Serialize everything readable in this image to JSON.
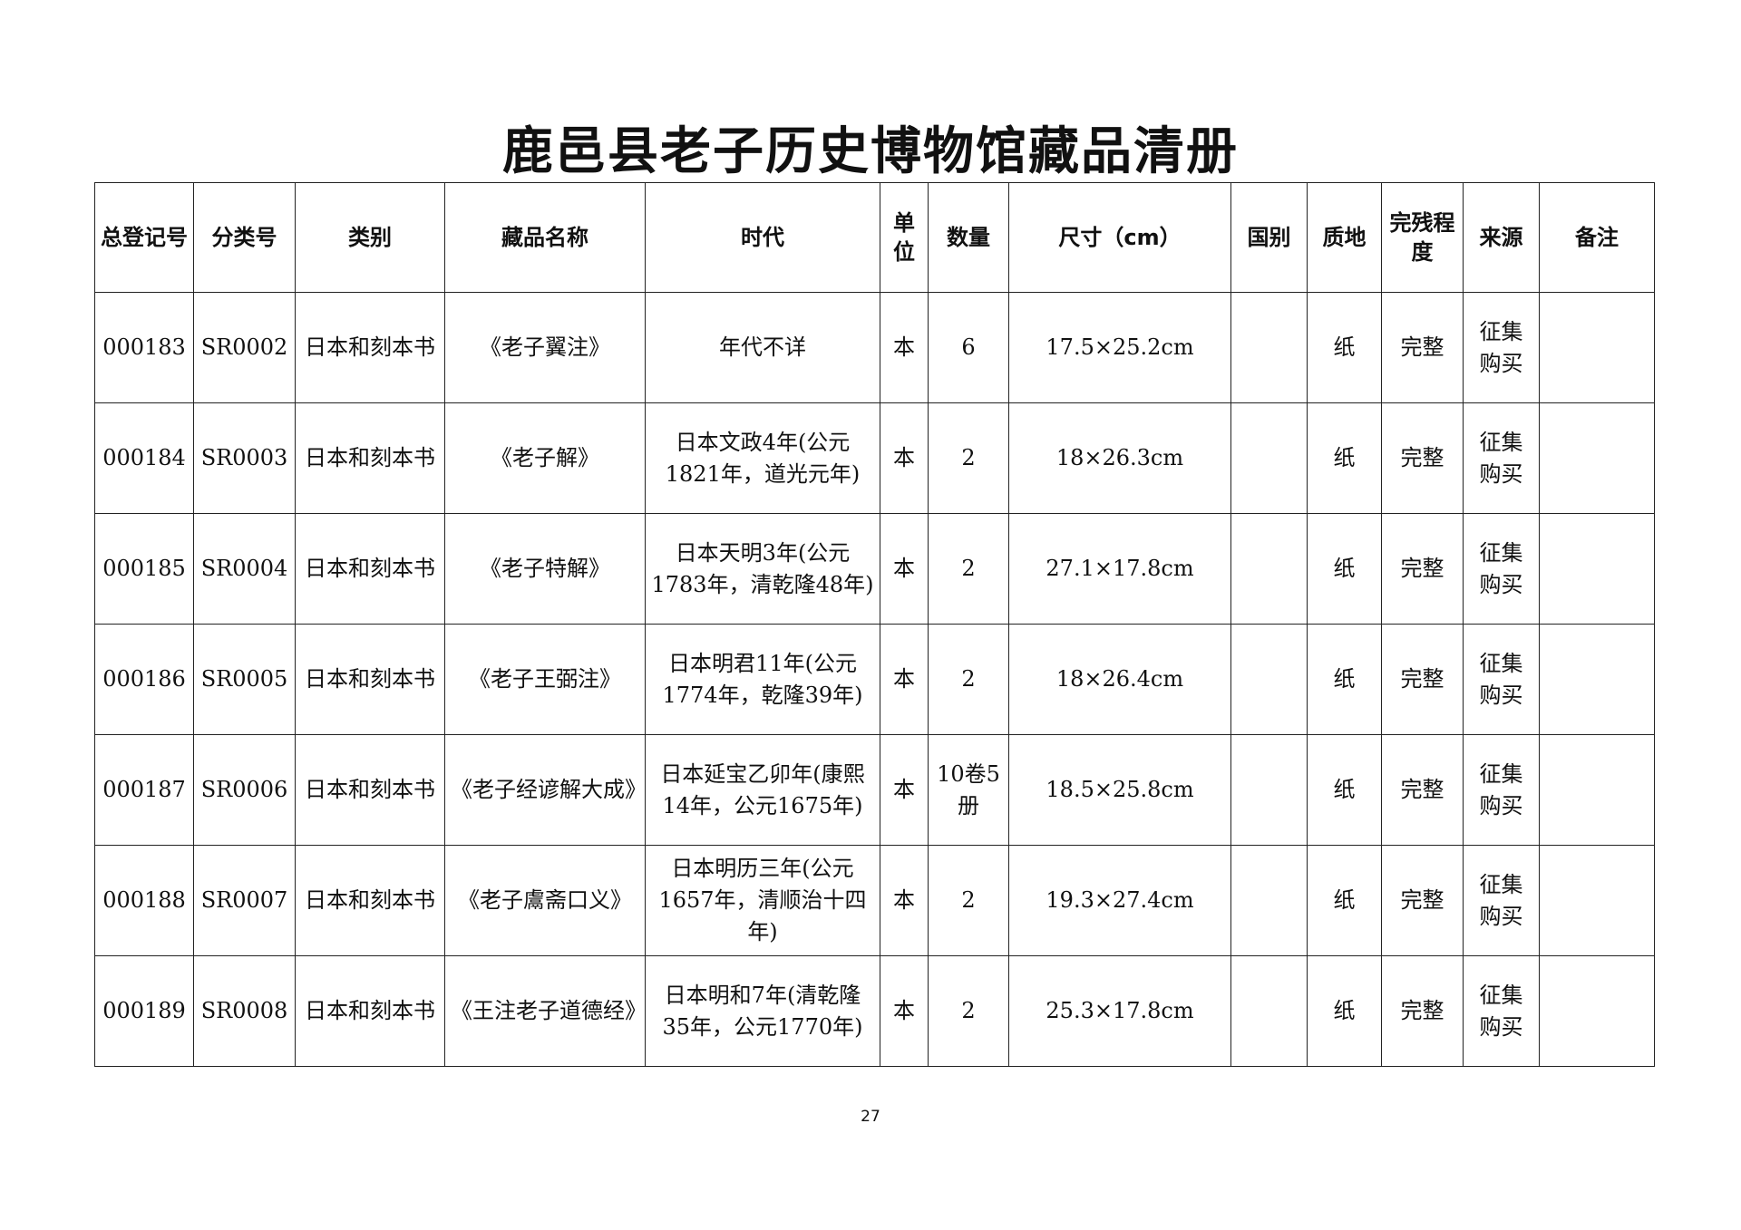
{
  "title": "鹿邑县老子历史博物馆藏品清册",
  "columns": [
    "总登记号",
    "分类号",
    "类别",
    "藏品名称",
    "时代",
    "单位",
    "数量",
    "尺寸（cm）",
    "国别",
    "质地",
    "完残程度",
    "来源",
    "备注"
  ],
  "rows": [
    [
      "000183",
      "SR0002",
      "日本和刻本书",
      "《老子翼注》",
      "年代不详",
      "本",
      "6",
      "17.5×25.2cm",
      "",
      "纸",
      "完整",
      "征集购买",
      ""
    ],
    [
      "000184",
      "SR0003",
      "日本和刻本书",
      "《老子解》",
      "日本文政4年(公元1821年，道光元年)",
      "本",
      "2",
      "18×26.3cm",
      "",
      "纸",
      "完整",
      "征集购买",
      ""
    ],
    [
      "000185",
      "SR0004",
      "日本和刻本书",
      "《老子特解》",
      "日本天明3年(公元1783年，清乾隆48年)",
      "本",
      "2",
      "27.1×17.8cm",
      "",
      "纸",
      "完整",
      "征集购买",
      ""
    ],
    [
      "000186",
      "SR0005",
      "日本和刻本书",
      "《老子王弼注》",
      "日本明君11年(公元1774年，乾隆39年)",
      "本",
      "2",
      "18×26.4cm",
      "",
      "纸",
      "完整",
      "征集购买",
      ""
    ],
    [
      "000187",
      "SR0006",
      "日本和刻本书",
      "《老子经谚解大成》",
      "日本延宝乙卯年(康熙14年，公元1675年)",
      "本",
      "10卷5册",
      "18.5×25.8cm",
      "",
      "纸",
      "完整",
      "征集购买",
      ""
    ],
    [
      "000188",
      "SR0007",
      "日本和刻本书",
      "《老子鬳斋口义》",
      "日本明历三年(公元1657年，清顺治十四年)",
      "本",
      "2",
      "19.3×27.4cm",
      "",
      "纸",
      "完整",
      "征集购买",
      ""
    ],
    [
      "000189",
      "SR0008",
      "日本和刻本书",
      "《王注老子道德经》",
      "日本明和7年(清乾隆35年，公元1770年)",
      "本",
      "2",
      "25.3×17.8cm",
      "",
      "纸",
      "完整",
      "征集购买",
      ""
    ]
  ],
  "page_number": "27"
}
